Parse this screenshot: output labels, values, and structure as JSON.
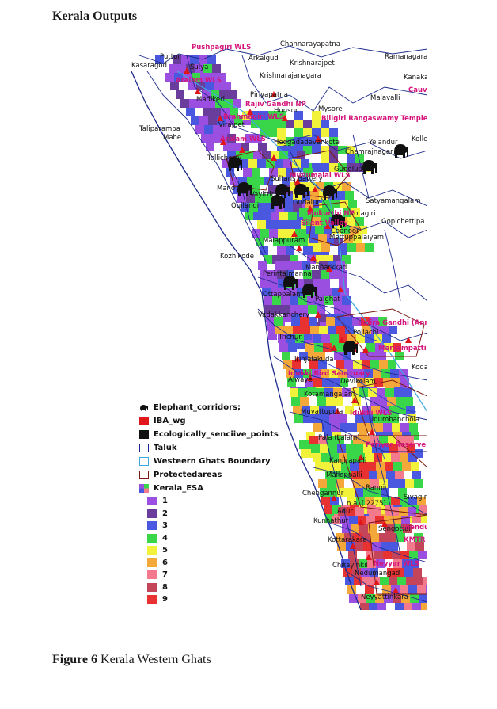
{
  "heading": "Kerala Outputs",
  "caption": {
    "label": "Figure 6",
    "text": " Kerala Western Ghats"
  },
  "legend": {
    "layers": [
      {
        "name": "Elephant_corridors;",
        "icon": "elephant-icon"
      },
      {
        "name": "IBA_wg",
        "color": "#e0161a"
      },
      {
        "name": "Ecologically_senciive_points",
        "color": "#111111"
      },
      {
        "name": "Taluk",
        "color": "#1c2a8c"
      },
      {
        "name": "Westeern Ghats Boundary",
        "color": "#3fa7e0"
      },
      {
        "name": "Protectedareas",
        "color": "#7a1a12"
      },
      {
        "name": "Kerala_ESA",
        "icon": "esa-icon"
      }
    ],
    "classes": [
      {
        "label": "1",
        "color": "#9b4fe0"
      },
      {
        "label": "2",
        "color": "#6a3c9c"
      },
      {
        "label": "3",
        "color": "#4a58e0"
      },
      {
        "label": "4",
        "color": "#3ad64a"
      },
      {
        "label": "5",
        "color": "#f2f23a"
      },
      {
        "label": "6",
        "color": "#f4a83a"
      },
      {
        "label": "7",
        "color": "#f27a8c"
      },
      {
        "label": "8",
        "color": "#c4445a"
      },
      {
        "label": "9",
        "color": "#e83232"
      }
    ]
  },
  "places": [
    "Channarayapatna",
    "Puttur",
    "Kasaragod",
    "Sulya",
    "Arkalgud",
    "Krishnarajpet",
    "Ramanagara",
    "Krishnarajanagara",
    "Kanaka",
    "Madikeri",
    "Piriyapatna",
    "Malavalli",
    "Mysore",
    "Hunsur",
    "Taliparamba",
    "Mahe",
    "Virajpet",
    "Heggadadevankote",
    "Yelandur",
    "Chamrajnagar",
    "Kolle",
    "Tellicherry",
    "Gundlupet",
    "Mano",
    "Vayittiri",
    "Sultans Battery",
    "Quilandi",
    "Gudalur",
    "Satyamangalam",
    "Kotagiri",
    "Gopichettipa",
    "Coonoor",
    "Malappuram",
    "Mettuppalaiyam",
    "Kozhikode",
    "Mannarkkad",
    "Perintalmanna",
    "Ottappalam",
    "Palghat",
    "Vadakkanchery",
    "Pollachi",
    "Trichur",
    "Irinjalakuda",
    "Koda",
    "Alwaye",
    "Devikolam",
    "Kotamangalam",
    "Muvattupula",
    "Udumbanchola",
    "Pala (Lalam)",
    "Kanjirapalli",
    "Mallappalli",
    "Ranni",
    "Chengannur",
    "Sivagiri",
    "Adur",
    "n.a. ( 2275)",
    "Kunnathur",
    "Kottarakara",
    "Sengottai",
    "Chirayinkil",
    "Nedumangad",
    "Neyyattinkara"
  ],
  "protected_areas": [
    "Pushpagiri WLS",
    "Aralam WLS",
    "Rajiv Gandhi NP",
    "Brahmagiri WLS",
    "Biligiri Rangaswamy Temple",
    "Cauvery",
    "Aralam WLS",
    "Mudumalai WLS",
    "Silent Valley",
    "Mukurthi NP",
    "Indira Gandhi (Annamalai)",
    "Manjampatti",
    "Idukki Bird Sanctuary",
    "Idukki WLS",
    "Periyar Reserve",
    "Shendurney WLS",
    "KMTR",
    "Neyyar WLS"
  ]
}
